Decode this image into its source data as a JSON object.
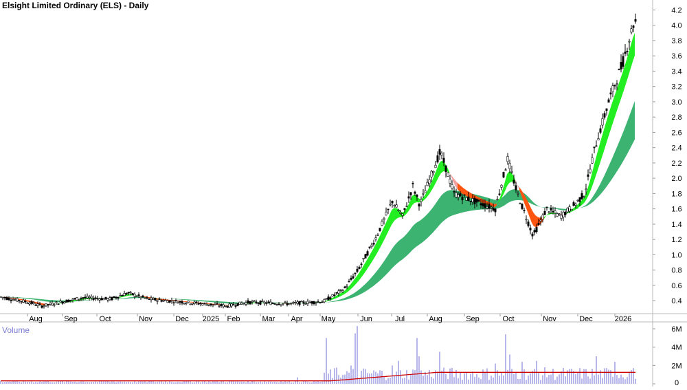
{
  "chart_data": {
    "type": "candlestick",
    "title": "Elsight Limited Ordinary (ELS) - Daily",
    "price_axis": {
      "ticks": [
        "0.4",
        "0.6",
        "0.8",
        "1.0",
        "1.2",
        "1.4",
        "1.6",
        "1.8",
        "2.0",
        "2.2",
        "2.4",
        "2.6",
        "2.8",
        "3.0",
        "3.2",
        "3.4",
        "3.6",
        "3.8",
        "4.0",
        "4.2"
      ],
      "range": [
        0.23,
        4.33
      ]
    },
    "x_axis": {
      "labels": [
        "Aug",
        "Sep",
        "Oct",
        "Nov",
        "Dec",
        "2025",
        "Feb",
        "Mar",
        "Apr",
        "May",
        "Jun",
        "Jul",
        "Aug",
        "Sep",
        "Oct",
        "Nov",
        "Dec",
        "2026"
      ]
    },
    "price_path": [
      {
        "t": 0,
        "v": 0.45
      },
      {
        "t": 45,
        "v": 0.37
      },
      {
        "t": 60,
        "v": 0.33
      },
      {
        "t": 120,
        "v": 0.44
      },
      {
        "t": 160,
        "v": 0.42
      },
      {
        "t": 185,
        "v": 0.5
      },
      {
        "t": 215,
        "v": 0.42
      },
      {
        "t": 255,
        "v": 0.39
      },
      {
        "t": 330,
        "v": 0.33
      },
      {
        "t": 360,
        "v": 0.38
      },
      {
        "t": 420,
        "v": 0.36
      },
      {
        "t": 470,
        "v": 0.39
      },
      {
        "t": 500,
        "v": 0.55
      },
      {
        "t": 520,
        "v": 0.8
      },
      {
        "t": 545,
        "v": 1.2
      },
      {
        "t": 570,
        "v": 1.7
      },
      {
        "t": 585,
        "v": 1.5
      },
      {
        "t": 600,
        "v": 1.9
      },
      {
        "t": 610,
        "v": 1.65
      },
      {
        "t": 640,
        "v": 2.35
      },
      {
        "t": 660,
        "v": 1.8
      },
      {
        "t": 690,
        "v": 1.7
      },
      {
        "t": 720,
        "v": 1.6
      },
      {
        "t": 738,
        "v": 2.25
      },
      {
        "t": 752,
        "v": 1.8
      },
      {
        "t": 775,
        "v": 1.25
      },
      {
        "t": 795,
        "v": 1.6
      },
      {
        "t": 815,
        "v": 1.5
      },
      {
        "t": 835,
        "v": 1.65
      },
      {
        "t": 850,
        "v": 1.8
      },
      {
        "t": 865,
        "v": 2.4
      },
      {
        "t": 885,
        "v": 3.0
      },
      {
        "t": 905,
        "v": 3.5
      },
      {
        "t": 922,
        "v": 4.05
      }
    ],
    "ribbons": [
      {
        "name": "short",
        "color_up": "#22ee22",
        "color_down": "#ff5511"
      },
      {
        "name": "long",
        "color": "#3cb371"
      }
    ],
    "volume": {
      "label": "Volume",
      "ticks": [
        "0",
        "2M",
        "4M",
        "6M"
      ],
      "range": [
        0,
        6.6
      ],
      "bar_color": "#6f6fd8",
      "average_color": "#cc0000",
      "spikes": [
        {
          "t": 432,
          "v": 0.7
        },
        {
          "t": 475,
          "v": 5.0
        },
        {
          "t": 500,
          "v": 1.0
        },
        {
          "t": 510,
          "v": 2.0
        },
        {
          "t": 517,
          "v": 5.5
        },
        {
          "t": 520,
          "v": 6.3
        },
        {
          "t": 570,
          "v": 2.0
        },
        {
          "t": 580,
          "v": 2.5
        },
        {
          "t": 605,
          "v": 5.0
        },
        {
          "t": 610,
          "v": 3.0
        },
        {
          "t": 640,
          "v": 3.5
        },
        {
          "t": 720,
          "v": 2.2
        },
        {
          "t": 735,
          "v": 5.4
        },
        {
          "t": 740,
          "v": 3.2
        },
        {
          "t": 760,
          "v": 2.4
        },
        {
          "t": 780,
          "v": 2.5
        },
        {
          "t": 866,
          "v": 3.0
        },
        {
          "t": 895,
          "v": 2.4
        },
        {
          "t": 918,
          "v": 1.5
        }
      ]
    }
  }
}
